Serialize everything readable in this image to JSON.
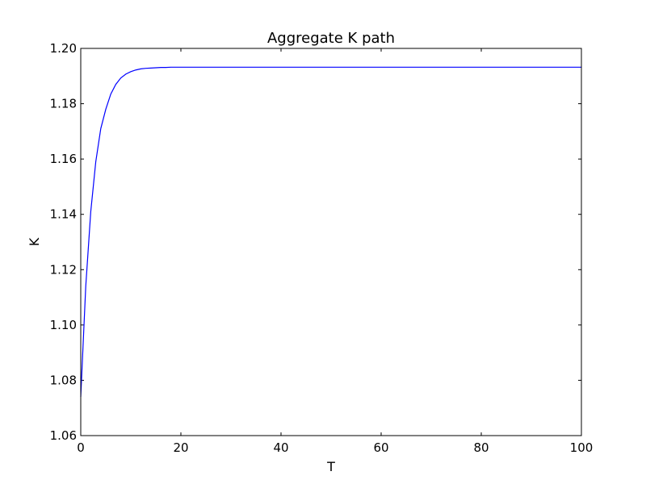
{
  "chart_data": {
    "type": "line",
    "title": "Aggregate K path",
    "xlabel": "T",
    "ylabel": "K",
    "xlim": [
      0,
      100
    ],
    "ylim": [
      1.06,
      1.2
    ],
    "x_ticks": [
      "0",
      "20",
      "40",
      "60",
      "80",
      "100"
    ],
    "y_ticks": [
      "1.06",
      "1.08",
      "1.10",
      "1.12",
      "1.14",
      "1.16",
      "1.18",
      "1.20"
    ],
    "grid": false,
    "line_color": "#0000ff",
    "series": [
      {
        "x": [
          0,
          1,
          2,
          3,
          4,
          5,
          6,
          7,
          8,
          9,
          10,
          11,
          12,
          13,
          14,
          15,
          16,
          17,
          18,
          20,
          25,
          30,
          40,
          50,
          60,
          70,
          80,
          90,
          100
        ],
        "y": [
          1.074,
          1.114,
          1.141,
          1.159,
          1.171,
          1.178,
          1.1835,
          1.187,
          1.1893,
          1.1907,
          1.1916,
          1.1922,
          1.1926,
          1.1928,
          1.1929,
          1.193,
          1.1931,
          1.1931,
          1.1932,
          1.1932,
          1.1932,
          1.1932,
          1.1932,
          1.1932,
          1.1932,
          1.1932,
          1.1932,
          1.1932,
          1.1932
        ]
      }
    ]
  }
}
